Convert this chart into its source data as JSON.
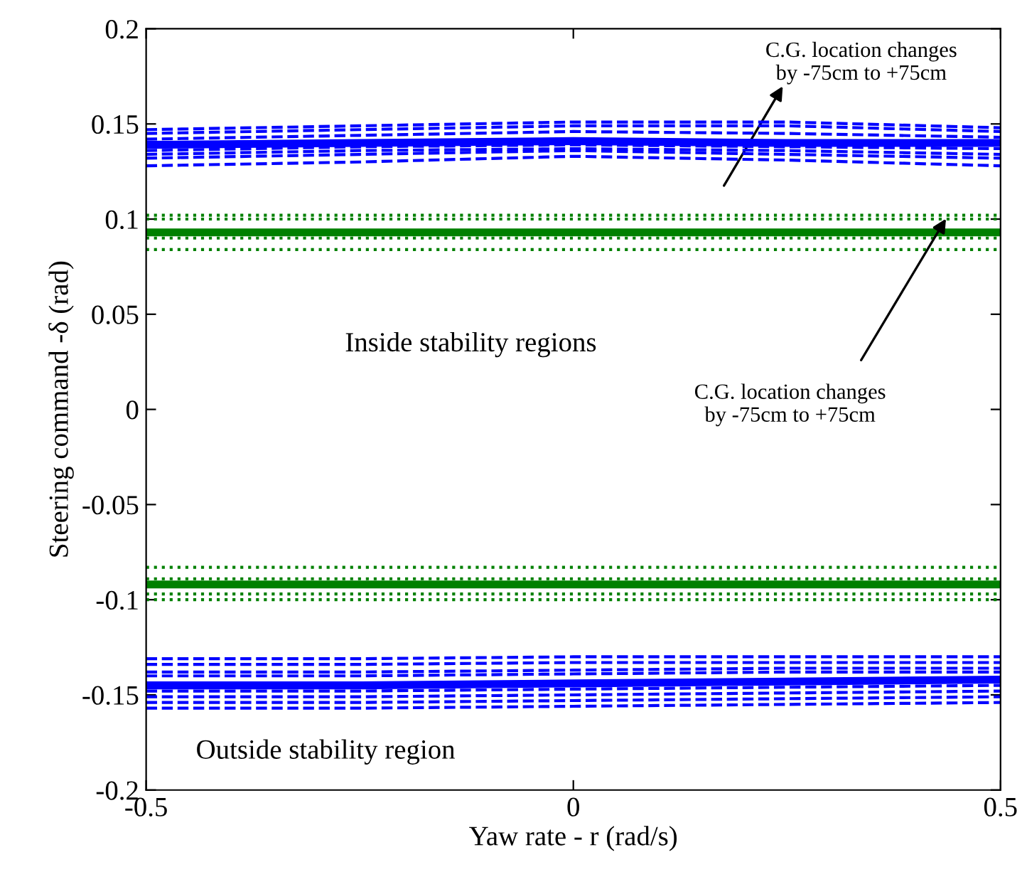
{
  "chart_data": {
    "type": "line",
    "xlabel": "Yaw rate - r (rad/s)",
    "ylabel": "Steering command -δ (rad)",
    "x": [
      -0.5,
      -0.25,
      0,
      0.25,
      0.5
    ],
    "xlim": [
      -0.5,
      0.5
    ],
    "xticks": [
      {
        "value": -0.5,
        "label": "-0.5"
      },
      0,
      0.5
    ],
    "ylim": [
      -0.2,
      0.2
    ],
    "yticks": [
      {
        "value": -0.2,
        "label": "-0.2"
      },
      {
        "value": -0.15,
        "label": "-0.15"
      },
      {
        "value": -0.1,
        "label": "-0.1"
      },
      {
        "value": -0.05,
        "label": "-0.05"
      },
      0,
      0.05,
      0.1,
      0.15,
      0.2
    ],
    "grid": false,
    "legend": false,
    "series": [
      {
        "color": "#0000ff",
        "line_style": "dashed",
        "values": [
          0.147,
          0.149,
          0.151,
          0.151,
          0.148
        ]
      },
      {
        "color": "#0000ff",
        "line_style": "dashed",
        "values": [
          0.145,
          0.147,
          0.149,
          0.149,
          0.146
        ]
      },
      {
        "color": "#0000ff",
        "line_style": "dashed",
        "values": [
          0.142,
          0.144,
          0.146,
          0.145,
          0.143
        ]
      },
      {
        "color": "#0000ff",
        "line_style": "dashed",
        "values": [
          0.136,
          0.138,
          0.139,
          0.138,
          0.137
        ]
      },
      {
        "color": "#0000ff",
        "line_style": "dashed",
        "values": [
          0.134,
          0.136,
          0.137,
          0.136,
          0.134
        ]
      },
      {
        "color": "#0000ff",
        "line_style": "dashed",
        "values": [
          0.132,
          0.134,
          0.136,
          0.134,
          0.132
        ]
      },
      {
        "color": "#0000ff",
        "line_style": "dashed",
        "values": [
          0.128,
          0.13,
          0.133,
          0.131,
          0.128
        ]
      },
      {
        "color": "#0000ff",
        "line_style": "solid",
        "values": [
          0.139,
          0.14,
          0.141,
          0.14,
          0.14
        ]
      },
      {
        "color": "#008000",
        "line_style": "dotted",
        "values": [
          0.102,
          0.102,
          0.102,
          0.102,
          0.102
        ]
      },
      {
        "color": "#008000",
        "line_style": "dotted",
        "values": [
          0.1,
          0.1,
          0.1,
          0.1,
          0.1
        ]
      },
      {
        "color": "#008000",
        "line_style": "dotted",
        "values": [
          0.09,
          0.09,
          0.09,
          0.09,
          0.09
        ]
      },
      {
        "color": "#008000",
        "line_style": "dotted",
        "values": [
          0.084,
          0.084,
          0.084,
          0.084,
          0.084
        ]
      },
      {
        "color": "#008000",
        "line_style": "solid",
        "values": [
          0.093,
          0.093,
          0.093,
          0.093,
          0.093
        ]
      },
      {
        "color": "#008000",
        "line_style": "dotted",
        "values": [
          -0.083,
          -0.083,
          -0.083,
          -0.083,
          -0.083
        ]
      },
      {
        "color": "#008000",
        "line_style": "dotted",
        "values": [
          -0.089,
          -0.089,
          -0.089,
          -0.089,
          -0.089
        ]
      },
      {
        "color": "#008000",
        "line_style": "dotted",
        "values": [
          -0.097,
          -0.097,
          -0.097,
          -0.097,
          -0.097
        ]
      },
      {
        "color": "#008000",
        "line_style": "dotted",
        "values": [
          -0.1,
          -0.1,
          -0.1,
          -0.1,
          -0.1
        ]
      },
      {
        "color": "#008000",
        "line_style": "solid",
        "values": [
          -0.092,
          -0.092,
          -0.092,
          -0.092,
          -0.092
        ]
      },
      {
        "color": "#0000ff",
        "line_style": "dashed",
        "values": [
          -0.131,
          -0.131,
          -0.13,
          -0.13,
          -0.13
        ]
      },
      {
        "color": "#0000ff",
        "line_style": "dashed",
        "values": [
          -0.134,
          -0.134,
          -0.133,
          -0.133,
          -0.133
        ]
      },
      {
        "color": "#0000ff",
        "line_style": "dashed",
        "values": [
          -0.138,
          -0.138,
          -0.137,
          -0.136,
          -0.136
        ]
      },
      {
        "color": "#0000ff",
        "line_style": "dashed",
        "values": [
          -0.14,
          -0.14,
          -0.139,
          -0.138,
          -0.138
        ]
      },
      {
        "color": "#0000ff",
        "line_style": "dashed",
        "values": [
          -0.148,
          -0.148,
          -0.147,
          -0.146,
          -0.145
        ]
      },
      {
        "color": "#0000ff",
        "line_style": "dashed",
        "values": [
          -0.151,
          -0.151,
          -0.15,
          -0.149,
          -0.148
        ]
      },
      {
        "color": "#0000ff",
        "line_style": "dashed",
        "values": [
          -0.154,
          -0.154,
          -0.153,
          -0.152,
          -0.151
        ]
      },
      {
        "color": "#0000ff",
        "line_style": "dashed",
        "values": [
          -0.157,
          -0.157,
          -0.156,
          -0.155,
          -0.154
        ]
      },
      {
        "color": "#0000ff",
        "line_style": "solid",
        "values": [
          -0.145,
          -0.145,
          -0.144,
          -0.143,
          -0.142
        ]
      }
    ],
    "annotations": [
      "C.G. location changes\nby -75cm to +75cm",
      {
        "text": "C.G. location changes\nby -75cm to +75cm",
        "x": 0.4385,
        "y": 0.102
      },
      "Inside stability regions",
      "Outside stability region"
    ]
  }
}
